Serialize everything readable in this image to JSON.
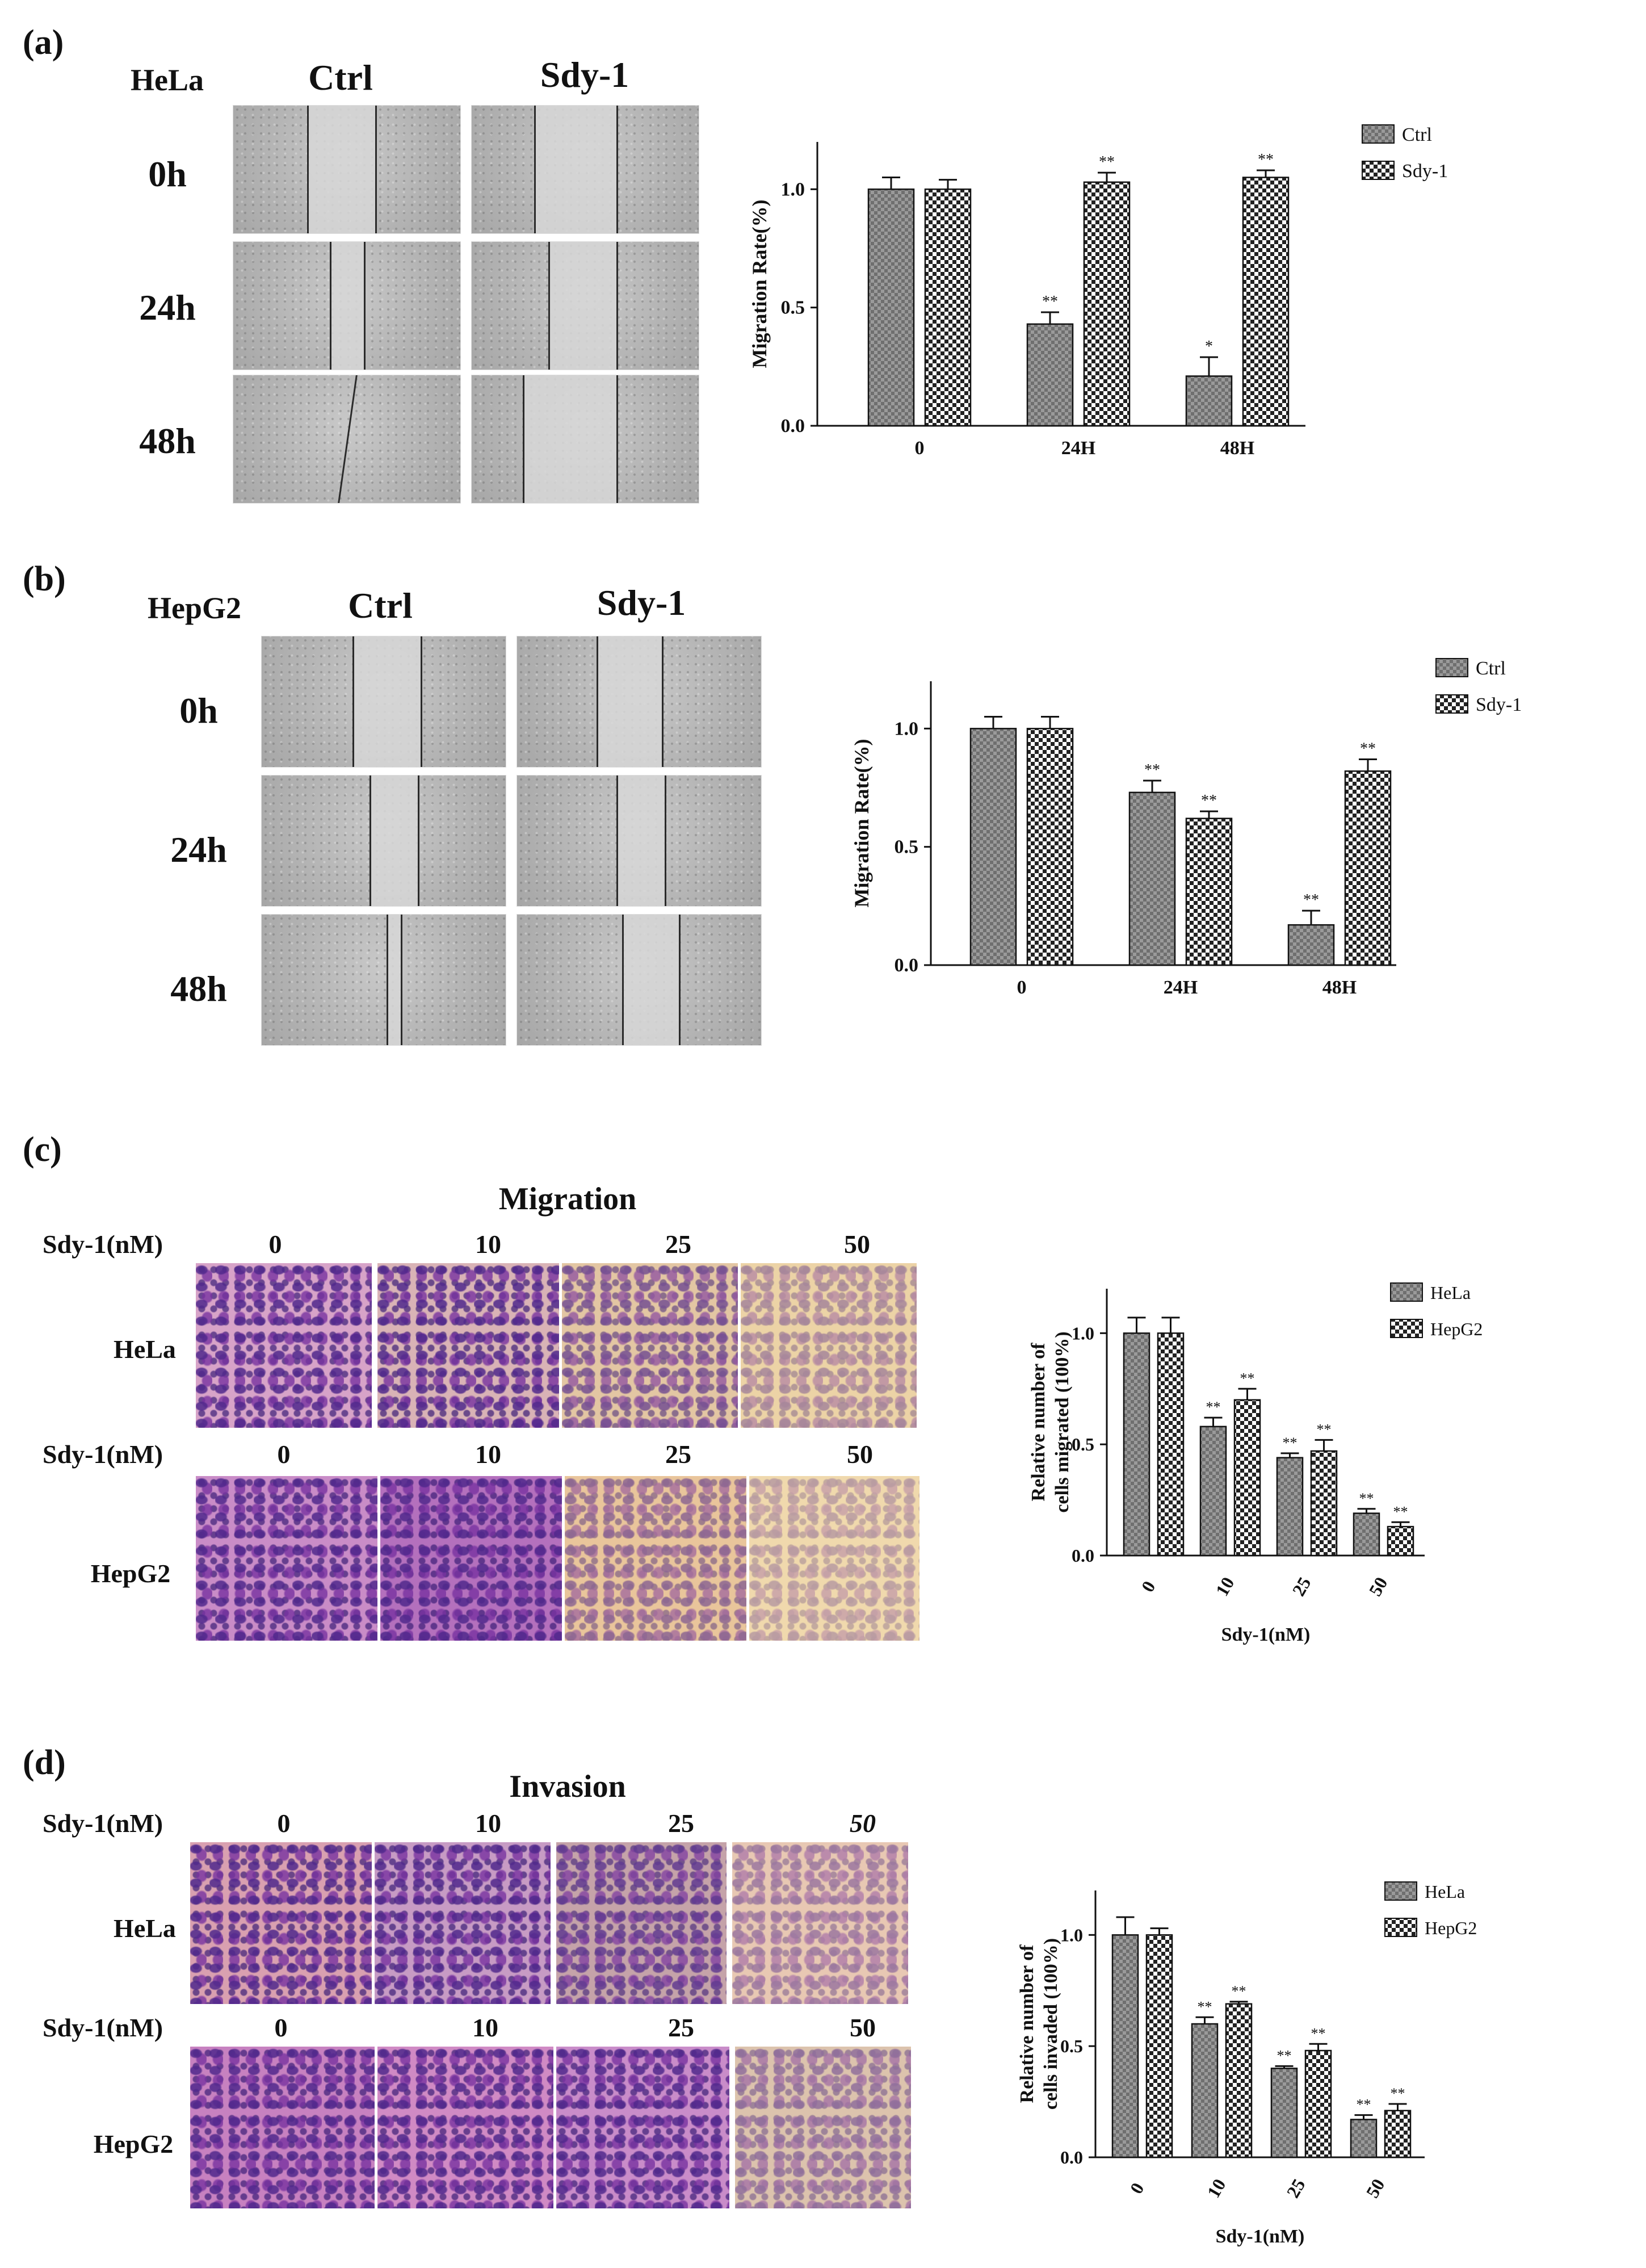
{
  "panels": {
    "a": {
      "label": "(a)",
      "cell_line": "HeLa",
      "columns": [
        "Ctrl",
        "Sdy-1"
      ],
      "rows": [
        "0h",
        "24h",
        "48h"
      ]
    },
    "b": {
      "label": "(b)",
      "cell_line": "HepG2",
      "columns": [
        "Ctrl",
        "Sdy-1"
      ],
      "rows": [
        "0h",
        "24h",
        "48h"
      ]
    },
    "c": {
      "label": "(c)",
      "title": "Migration",
      "dose_label": "Sdy-1(nM)",
      "doses": [
        "0",
        "10",
        "25",
        "50"
      ],
      "rows": [
        "HeLa",
        "HepG2"
      ]
    },
    "d": {
      "label": "(d)",
      "title": "Invasion",
      "dose_label": "Sdy-1(nM)",
      "doses": [
        "0",
        "10",
        "25",
        "50"
      ],
      "doses_row1": [
        "0",
        "10",
        "25",
        "50"
      ],
      "rows": [
        "HeLa",
        "HepG2"
      ]
    }
  },
  "colors": {
    "bar_a": "#6f6f6f",
    "bar_b": "#ffffff",
    "stain_bg": "#e9c9a0",
    "stain_cells": "#7a3f9e"
  },
  "chart_data": [
    {
      "id": "a",
      "type": "bar",
      "categories": [
        "0",
        "24H",
        "48H"
      ],
      "series": [
        {
          "name": "Ctrl",
          "values": [
            1.0,
            0.43,
            0.21
          ],
          "errors": [
            0.05,
            0.05,
            0.08
          ],
          "sig": [
            "",
            "**",
            "*"
          ]
        },
        {
          "name": "Sdy-1",
          "values": [
            1.0,
            1.03,
            1.05
          ],
          "errors": [
            0.04,
            0.04,
            0.03
          ],
          "sig": [
            "",
            "**",
            "**"
          ]
        }
      ],
      "ylabel": "Migration Rate(%)",
      "xlabel": "",
      "ylim": [
        0,
        1.2
      ],
      "yticks": [
        "0.0",
        "0.5",
        "1.0"
      ],
      "legend": "top-right"
    },
    {
      "id": "b",
      "type": "bar",
      "categories": [
        "0",
        "24H",
        "48H"
      ],
      "series": [
        {
          "name": "Ctrl",
          "values": [
            1.0,
            0.73,
            0.17
          ],
          "errors": [
            0.05,
            0.05,
            0.06
          ],
          "sig": [
            "",
            "**",
            "**"
          ]
        },
        {
          "name": "Sdy-1",
          "values": [
            1.0,
            0.62,
            0.82
          ],
          "errors": [
            0.05,
            0.03,
            0.05
          ],
          "sig": [
            "",
            "**",
            "**"
          ]
        }
      ],
      "ylabel": "Migration Rate(%)",
      "xlabel": "",
      "ylim": [
        0,
        1.2
      ],
      "yticks": [
        "0.0",
        "0.5",
        "1.0"
      ],
      "legend": "top-right"
    },
    {
      "id": "c",
      "type": "bar",
      "categories": [
        "0",
        "10",
        "25",
        "50"
      ],
      "series": [
        {
          "name": "HeLa",
          "values": [
            1.0,
            0.58,
            0.44,
            0.19
          ],
          "errors": [
            0.07,
            0.04,
            0.02,
            0.02
          ],
          "sig": [
            "",
            "**",
            "**",
            "**"
          ]
        },
        {
          "name": "HepG2",
          "values": [
            1.0,
            0.7,
            0.47,
            0.13
          ],
          "errors": [
            0.07,
            0.05,
            0.05,
            0.02
          ],
          "sig": [
            "",
            "**",
            "**",
            "**"
          ]
        }
      ],
      "ylabel": "Relative number of|cells migrated (100%)",
      "xlabel": "Sdy-1(nM)",
      "ylim": [
        0,
        1.2
      ],
      "yticks": [
        "0.0",
        "0.5",
        "1.0"
      ],
      "legend": "top-right"
    },
    {
      "id": "d",
      "type": "bar",
      "categories": [
        "0",
        "10",
        "25",
        "50"
      ],
      "series": [
        {
          "name": "HeLa",
          "values": [
            1.0,
            0.6,
            0.4,
            0.17
          ],
          "errors": [
            0.08,
            0.03,
            0.01,
            0.02
          ],
          "sig": [
            "",
            "**",
            "**",
            "**"
          ]
        },
        {
          "name": "HepG2",
          "values": [
            1.0,
            0.69,
            0.48,
            0.21
          ],
          "errors": [
            0.03,
            0.01,
            0.03,
            0.03
          ],
          "sig": [
            "",
            "**",
            "**",
            "**"
          ]
        }
      ],
      "ylabel": "Relative number of|cells invaded (100%)",
      "xlabel": "Sdy-1(nM)",
      "ylim": [
        0,
        1.2
      ],
      "yticks": [
        "0.0",
        "0.5",
        "1.0"
      ],
      "legend": "top-right"
    }
  ]
}
